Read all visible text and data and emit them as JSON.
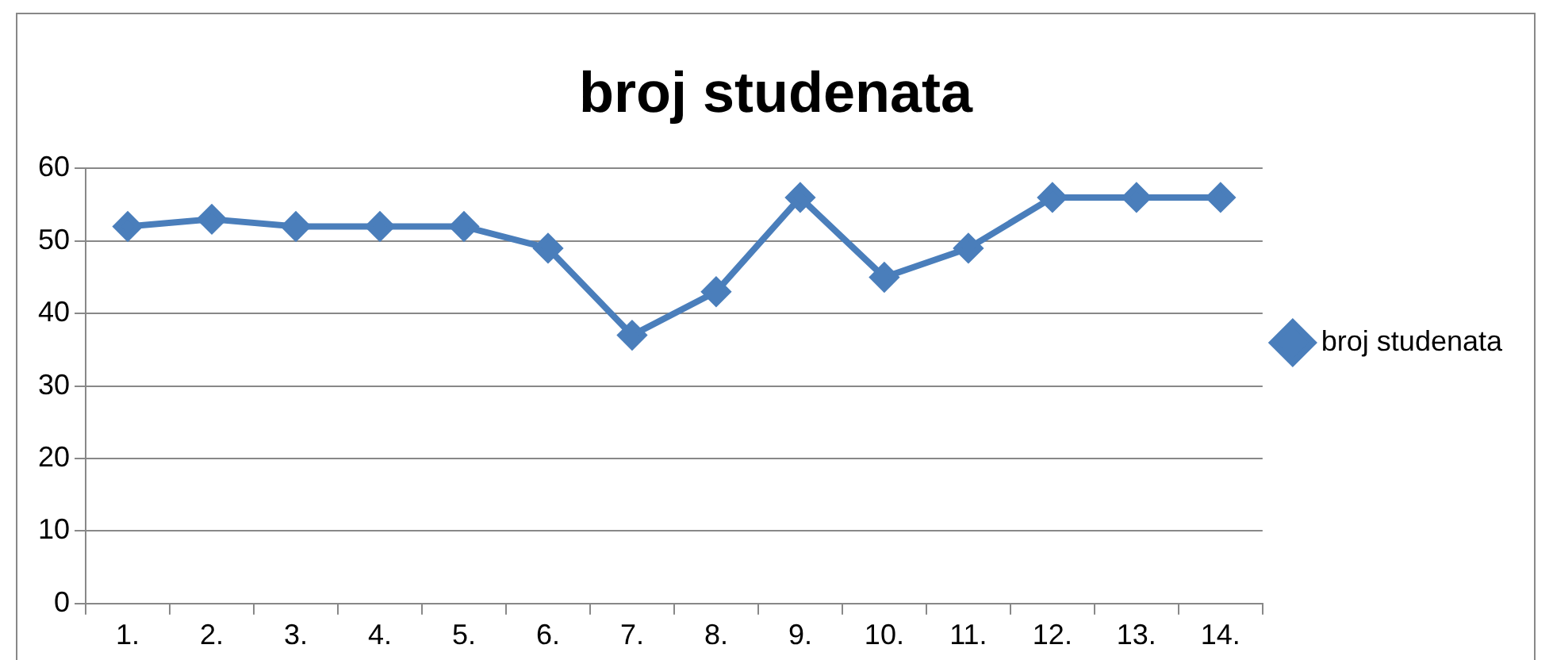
{
  "chart_data": {
    "type": "line",
    "title": "broj studenata",
    "categories": [
      "1.",
      "2.",
      "3.",
      "4.",
      "5.",
      "6.",
      "7.",
      "8.",
      "9.",
      "10.",
      "11.",
      "12.",
      "13.",
      "14."
    ],
    "series": [
      {
        "name": "broj studenata",
        "color": "#4a7ebb",
        "values": [
          52,
          53,
          52,
          52,
          52,
          49,
          37,
          43,
          56,
          45,
          49,
          56,
          56,
          56
        ]
      }
    ],
    "ylim": [
      0,
      60
    ],
    "yticks": [
      0,
      10,
      20,
      30,
      40,
      50,
      60
    ],
    "grid": "y",
    "legend": "right",
    "marker": "diamond"
  }
}
